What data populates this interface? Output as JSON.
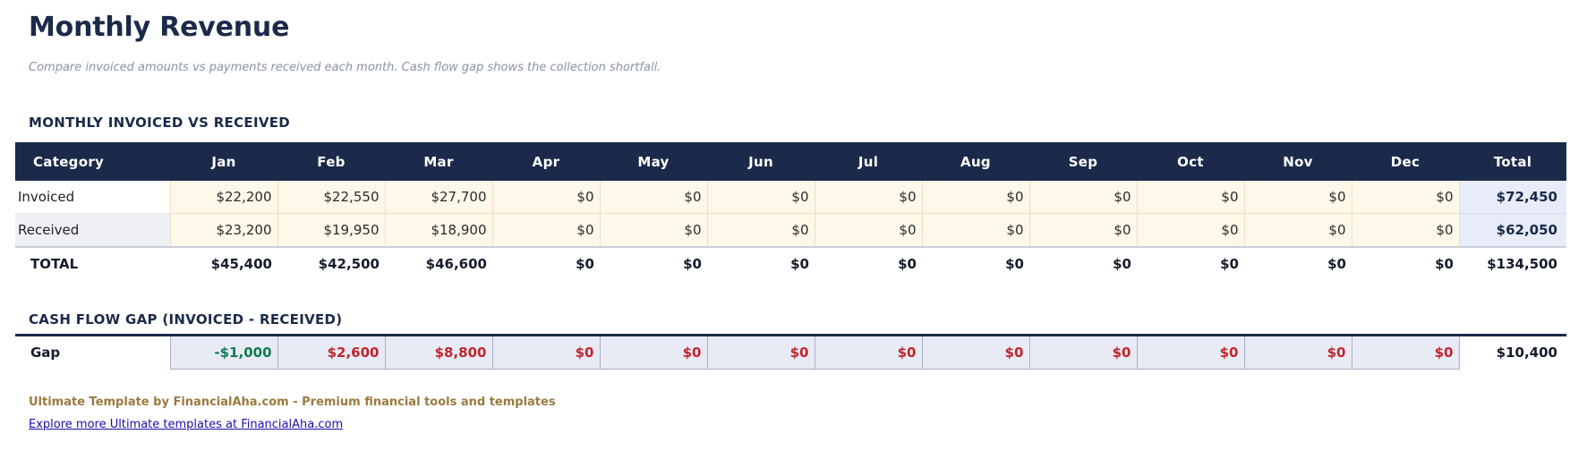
{
  "page": {
    "title": "Monthly Revenue",
    "subtitle": "Compare invoiced amounts vs payments received each month. Cash flow gap shows the collection shortfall."
  },
  "colors": {
    "header_navy": "#1b2a4a",
    "month_cell_cream": "#fdf8e9",
    "cream_border": "#ece0c6",
    "total_column_lavender": "#e7ecf8",
    "gap_cell_lavender": "#e8ebf5",
    "gap_cell_border": "#a9b1c4",
    "positive_green": "#0e7d52",
    "negative_red": "#c2242c",
    "brand_gold": "#9b7a3e",
    "link_blue": "#1a0dab"
  },
  "monthly_table": {
    "heading": "MONTHLY INVOICED VS RECEIVED",
    "columns": [
      "Category",
      "Jan",
      "Feb",
      "Mar",
      "Apr",
      "May",
      "Jun",
      "Jul",
      "Aug",
      "Sep",
      "Oct",
      "Nov",
      "Dec",
      "Total"
    ],
    "rows": [
      {
        "label": "Invoiced",
        "values": [
          "$22,200",
          "$22,550",
          "$27,700",
          "$0",
          "$0",
          "$0",
          "$0",
          "$0",
          "$0",
          "$0",
          "$0",
          "$0"
        ],
        "total": "$72,450"
      },
      {
        "label": "Received",
        "values": [
          "$23,200",
          "$19,950",
          "$18,900",
          "$0",
          "$0",
          "$0",
          "$0",
          "$0",
          "$0",
          "$0",
          "$0",
          "$0"
        ],
        "total": "$62,050"
      }
    ],
    "total_row": {
      "label": "TOTAL",
      "values": [
        "$45,400",
        "$42,500",
        "$46,600",
        "$0",
        "$0",
        "$0",
        "$0",
        "$0",
        "$0",
        "$0",
        "$0",
        "$0"
      ],
      "total": "$134,500"
    }
  },
  "gap_table": {
    "heading": "CASH FLOW GAP (INVOICED - RECEIVED)",
    "row": {
      "label": "Gap",
      "values": [
        "-$1,000",
        "$2,600",
        "$8,800",
        "$0",
        "$0",
        "$0",
        "$0",
        "$0",
        "$0",
        "$0",
        "$0",
        "$0"
      ],
      "tones": [
        "green",
        "red",
        "red",
        "red",
        "red",
        "red",
        "red",
        "red",
        "red",
        "red",
        "red",
        "red"
      ],
      "total": "$10,400"
    }
  },
  "footer": {
    "brand_line": "Ultimate Template by FinancialAha.com - Premium financial tools and templates",
    "link_text": "Explore more Ultimate templates at FinancialAha.com"
  }
}
